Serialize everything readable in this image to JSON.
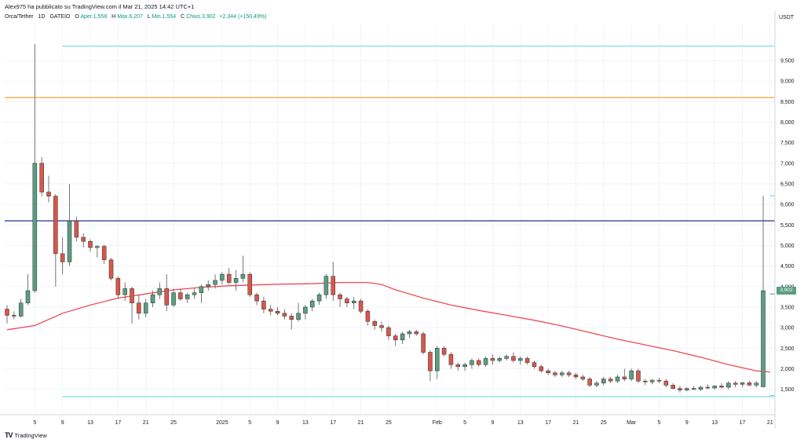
{
  "header": {
    "publisher_line": "Alex975 ha pubblicato su TradingView.com il Mar 21, 2025 14:42 UTC+1",
    "symbol": "Orca/Tether",
    "interval": "1D",
    "exchange": "GATEIO",
    "open_label": "O",
    "open_value": "Aper.1,558",
    "high_label": "H",
    "high_value": "Max.6,207",
    "low_label": "L",
    "low_value": "Min.1,554",
    "close_label": "C",
    "close_value": "Chius.3,902",
    "change_value": "+2,344 (+150,49%)"
  },
  "currency": "USDT",
  "last_price_tag": "3,902",
  "footer": {
    "brand": "TradingView",
    "logo_glyph": "TV"
  },
  "colors": {
    "up": "#5a9e82",
    "down": "#d9574a",
    "ma": "#ee4a55",
    "orange_level": "#f59c1a",
    "blue_level": "#2b2f8f",
    "cyan_level": "#5fd4e0",
    "grid": "#f0f3fa"
  },
  "chart_data": {
    "type": "candlestick",
    "ylim": [
      0.9,
      10.4
    ],
    "yticks": [
      "1,500",
      "2,000",
      "2,500",
      "3,000",
      "3,500",
      "4,000",
      "4,500",
      "5,000",
      "5,500",
      "6,000",
      "6,500",
      "7,000",
      "7,500",
      "8,000",
      "8,500",
      "9,000",
      "9,500"
    ],
    "ytick_values": [
      1.5,
      2.0,
      2.5,
      3.0,
      3.5,
      4.0,
      4.5,
      5.0,
      5.5,
      6.0,
      6.5,
      7.0,
      7.5,
      8.0,
      8.5,
      9.0,
      9.5
    ],
    "xticks": [
      {
        "label": "5",
        "index": 4
      },
      {
        "label": "9",
        "index": 8
      },
      {
        "label": "13",
        "index": 12
      },
      {
        "label": "17",
        "index": 16
      },
      {
        "label": "21",
        "index": 20
      },
      {
        "label": "25",
        "index": 24
      },
      {
        "label": "2025",
        "index": 31
      },
      {
        "label": "5",
        "index": 35
      },
      {
        "label": "9",
        "index": 39
      },
      {
        "label": "13",
        "index": 43
      },
      {
        "label": "17",
        "index": 47
      },
      {
        "label": "21",
        "index": 51
      },
      {
        "label": "25",
        "index": 55
      },
      {
        "label": "Feb",
        "index": 62
      },
      {
        "label": "5",
        "index": 66
      },
      {
        "label": "9",
        "index": 70
      },
      {
        "label": "13",
        "index": 74
      },
      {
        "label": "17",
        "index": 78
      },
      {
        "label": "21",
        "index": 82
      },
      {
        "label": "25",
        "index": 86
      },
      {
        "label": "Mar",
        "index": 90
      },
      {
        "label": "5",
        "index": 94
      },
      {
        "label": "9",
        "index": 98
      },
      {
        "label": "13",
        "index": 102
      },
      {
        "label": "17",
        "index": 106
      },
      {
        "label": "21",
        "index": 110
      }
    ],
    "candles": [
      [
        3.45,
        3.55,
        3.1,
        3.3
      ],
      [
        3.3,
        3.4,
        3.2,
        3.28
      ],
      [
        3.28,
        3.7,
        3.25,
        3.6
      ],
      [
        3.6,
        4.3,
        3.55,
        3.9
      ],
      [
        3.9,
        9.9,
        3.85,
        7.0
      ],
      [
        7.0,
        7.15,
        6.2,
        6.3
      ],
      [
        6.3,
        6.7,
        6.05,
        6.2
      ],
      [
        6.2,
        6.25,
        4.0,
        4.8
      ],
      [
        4.8,
        5.2,
        4.3,
        4.6
      ],
      [
        4.6,
        6.5,
        4.5,
        5.6
      ],
      [
        5.6,
        5.7,
        5.1,
        5.2
      ],
      [
        5.2,
        5.3,
        4.95,
        5.1
      ],
      [
        5.1,
        5.15,
        4.85,
        4.95
      ],
      [
        4.95,
        5.0,
        4.7,
        4.98
      ],
      [
        4.98,
        5.02,
        4.55,
        4.65
      ],
      [
        4.65,
        4.7,
        4.15,
        4.2
      ],
      [
        4.2,
        4.25,
        3.7,
        3.8
      ],
      [
        3.8,
        4.1,
        3.65,
        3.95
      ],
      [
        3.95,
        4.0,
        3.1,
        3.6
      ],
      [
        3.6,
        3.8,
        3.2,
        3.35
      ],
      [
        3.35,
        3.7,
        3.25,
        3.6
      ],
      [
        3.6,
        3.9,
        3.5,
        3.8
      ],
      [
        3.8,
        4.1,
        3.7,
        3.95
      ],
      [
        3.95,
        4.3,
        3.4,
        3.55
      ],
      [
        3.55,
        3.95,
        3.5,
        3.85
      ],
      [
        3.85,
        3.95,
        3.65,
        3.7
      ],
      [
        3.7,
        3.85,
        3.6,
        3.8
      ],
      [
        3.8,
        3.95,
        3.7,
        3.85
      ],
      [
        3.85,
        4.05,
        3.6,
        4.0
      ],
      [
        4.0,
        4.15,
        3.9,
        4.05
      ],
      [
        4.05,
        4.3,
        3.95,
        4.15
      ],
      [
        4.15,
        4.35,
        4.05,
        4.3
      ],
      [
        4.3,
        4.45,
        4.05,
        4.1
      ],
      [
        4.1,
        4.4,
        3.9,
        4.2
      ],
      [
        4.2,
        4.75,
        4.1,
        4.3
      ],
      [
        4.3,
        4.35,
        3.75,
        3.8
      ],
      [
        3.8,
        3.85,
        3.55,
        3.65
      ],
      [
        3.65,
        3.75,
        3.35,
        3.45
      ],
      [
        3.45,
        3.55,
        3.3,
        3.4
      ],
      [
        3.4,
        3.5,
        3.3,
        3.35
      ],
      [
        3.35,
        3.45,
        3.2,
        3.28
      ],
      [
        3.28,
        3.35,
        2.95,
        3.2
      ],
      [
        3.2,
        3.6,
        3.15,
        3.35
      ],
      [
        3.35,
        3.55,
        3.2,
        3.5
      ],
      [
        3.5,
        3.7,
        3.4,
        3.65
      ],
      [
        3.65,
        3.85,
        3.55,
        3.8
      ],
      [
        3.8,
        4.3,
        3.7,
        4.25
      ],
      [
        4.25,
        4.6,
        3.65,
        3.8
      ],
      [
        3.8,
        3.85,
        3.5,
        3.7
      ],
      [
        3.7,
        3.75,
        3.5,
        3.6
      ],
      [
        3.6,
        3.75,
        3.45,
        3.65
      ],
      [
        3.65,
        3.7,
        3.35,
        3.4
      ],
      [
        3.4,
        3.45,
        3.05,
        3.15
      ],
      [
        3.15,
        3.2,
        2.95,
        3.05
      ],
      [
        3.05,
        3.15,
        2.9,
        3.0
      ],
      [
        3.0,
        3.05,
        2.7,
        2.8
      ],
      [
        2.8,
        2.85,
        2.55,
        2.7
      ],
      [
        2.7,
        2.9,
        2.6,
        2.85
      ],
      [
        2.85,
        2.95,
        2.75,
        2.9
      ],
      [
        2.9,
        2.95,
        2.8,
        2.85
      ],
      [
        2.85,
        2.9,
        2.35,
        2.4
      ],
      [
        2.4,
        2.45,
        1.7,
        1.95
      ],
      [
        1.95,
        2.55,
        1.75,
        2.5
      ],
      [
        2.5,
        2.55,
        2.3,
        2.35
      ],
      [
        2.35,
        2.4,
        2.0,
        2.1
      ],
      [
        2.1,
        2.15,
        1.95,
        2.05
      ],
      [
        2.05,
        2.15,
        1.95,
        2.1
      ],
      [
        2.1,
        2.25,
        2.0,
        2.2
      ],
      [
        2.2,
        2.25,
        2.05,
        2.1
      ],
      [
        2.1,
        2.3,
        2.05,
        2.25
      ],
      [
        2.25,
        2.35,
        2.1,
        2.2
      ],
      [
        2.2,
        2.3,
        2.15,
        2.25
      ],
      [
        2.25,
        2.35,
        2.2,
        2.3
      ],
      [
        2.3,
        2.4,
        2.15,
        2.2
      ],
      [
        2.2,
        2.3,
        2.1,
        2.25
      ],
      [
        2.25,
        2.3,
        2.1,
        2.15
      ],
      [
        2.15,
        2.2,
        2.0,
        2.05
      ],
      [
        2.05,
        2.1,
        1.9,
        1.95
      ],
      [
        1.95,
        2.0,
        1.85,
        1.9
      ],
      [
        1.9,
        1.95,
        1.8,
        1.85
      ],
      [
        1.85,
        1.95,
        1.8,
        1.9
      ],
      [
        1.9,
        1.95,
        1.8,
        1.85
      ],
      [
        1.85,
        1.9,
        1.75,
        1.8
      ],
      [
        1.8,
        1.85,
        1.7,
        1.75
      ],
      [
        1.75,
        1.8,
        1.55,
        1.6
      ],
      [
        1.6,
        1.7,
        1.55,
        1.65
      ],
      [
        1.65,
        1.8,
        1.6,
        1.75
      ],
      [
        1.75,
        1.8,
        1.65,
        1.7
      ],
      [
        1.7,
        1.85,
        1.65,
        1.8
      ],
      [
        1.8,
        2.0,
        1.7,
        1.75
      ],
      [
        1.75,
        2.0,
        1.7,
        1.95
      ],
      [
        1.95,
        2.0,
        1.65,
        1.7
      ],
      [
        1.7,
        1.75,
        1.6,
        1.68
      ],
      [
        1.68,
        1.75,
        1.62,
        1.72
      ],
      [
        1.72,
        1.78,
        1.65,
        1.7
      ],
      [
        1.7,
        1.75,
        1.55,
        1.6
      ],
      [
        1.6,
        1.65,
        1.5,
        1.52
      ],
      [
        1.52,
        1.58,
        1.42,
        1.48
      ],
      [
        1.48,
        1.55,
        1.45,
        1.52
      ],
      [
        1.52,
        1.58,
        1.48,
        1.5
      ],
      [
        1.5,
        1.58,
        1.46,
        1.55
      ],
      [
        1.55,
        1.62,
        1.5,
        1.53
      ],
      [
        1.53,
        1.6,
        1.5,
        1.58
      ],
      [
        1.58,
        1.65,
        1.52,
        1.55
      ],
      [
        1.55,
        1.7,
        1.5,
        1.65
      ],
      [
        1.65,
        1.7,
        1.55,
        1.62
      ],
      [
        1.62,
        1.68,
        1.55,
        1.66
      ],
      [
        1.66,
        1.7,
        1.58,
        1.6
      ],
      [
        1.6,
        1.7,
        1.55,
        1.65
      ],
      [
        1.56,
        6.21,
        1.55,
        3.9
      ]
    ],
    "ma": [
      [
        0,
        2.95
      ],
      [
        4,
        3.05
      ],
      [
        8,
        3.35
      ],
      [
        12,
        3.55
      ],
      [
        16,
        3.72
      ],
      [
        20,
        3.82
      ],
      [
        24,
        3.92
      ],
      [
        28,
        3.98
      ],
      [
        32,
        4.02
      ],
      [
        36,
        4.04
      ],
      [
        40,
        4.06
      ],
      [
        44,
        4.07
      ],
      [
        48,
        4.1
      ],
      [
        52,
        4.1
      ],
      [
        54,
        4.05
      ],
      [
        56,
        3.92
      ],
      [
        60,
        3.72
      ],
      [
        64,
        3.55
      ],
      [
        68,
        3.42
      ],
      [
        72,
        3.3
      ],
      [
        76,
        3.18
      ],
      [
        80,
        3.04
      ],
      [
        84,
        2.88
      ],
      [
        88,
        2.72
      ],
      [
        92,
        2.58
      ],
      [
        96,
        2.44
      ],
      [
        100,
        2.28
      ],
      [
        104,
        2.1
      ],
      [
        108,
        1.95
      ],
      [
        110,
        1.92
      ]
    ],
    "levels": [
      {
        "price": 8.6,
        "color_key": "orange_level"
      },
      {
        "price": 5.6,
        "color_key": "blue_level"
      }
    ],
    "ranges": [
      {
        "price": 9.85,
        "from": 8,
        "to": 112
      },
      {
        "price": 1.32,
        "from": 8,
        "to": 112
      },
      {
        "price": 6.21,
        "from": 110,
        "to": 112
      },
      {
        "price": 1.35,
        "from": 110,
        "to": 112
      },
      {
        "price": 3.82,
        "from": 110,
        "to": 112
      }
    ]
  }
}
